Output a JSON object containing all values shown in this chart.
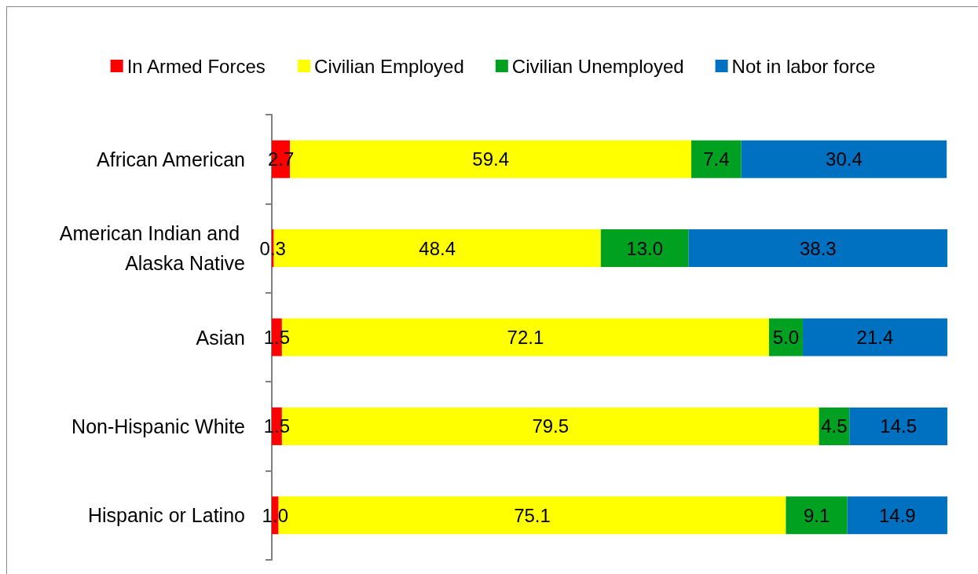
{
  "chart_data": {
    "type": "bar",
    "orientation": "horizontal",
    "stacked": true,
    "categories": [
      "African American",
      "American Indian and Alaska Native",
      "Asian",
      "Non-Hispanic White",
      "Hispanic or Latino"
    ],
    "series": [
      {
        "name": "In Armed Forces",
        "color": "#ff0000",
        "values": [
          2.7,
          0.3,
          1.5,
          1.5,
          1.0
        ],
        "value_labels": [
          "2.7",
          "0.3",
          "1.5",
          "1.5",
          "1.0"
        ]
      },
      {
        "name": "Civilian Employed",
        "color": "#ffff00",
        "values": [
          59.4,
          48.4,
          72.1,
          79.5,
          75.1
        ],
        "value_labels": [
          "59.4",
          "48.4",
          "72.1",
          "79.5",
          "75.1"
        ]
      },
      {
        "name": "Civilian Unemployed",
        "color": "#00a020",
        "values": [
          7.4,
          13.0,
          5.0,
          4.5,
          9.1
        ],
        "value_labels": [
          "7.4",
          "13.0",
          "5.0",
          "4.5",
          "9.1"
        ]
      },
      {
        "name": "Not in labor force",
        "color": "#0070c0",
        "values": [
          30.4,
          38.3,
          21.4,
          14.5,
          14.9
        ],
        "value_labels": [
          "30.4",
          "38.3",
          "21.4",
          "14.5",
          "14.9"
        ]
      }
    ],
    "xlim": [
      0,
      100
    ],
    "tick_labels": "y",
    "legend": "top"
  }
}
